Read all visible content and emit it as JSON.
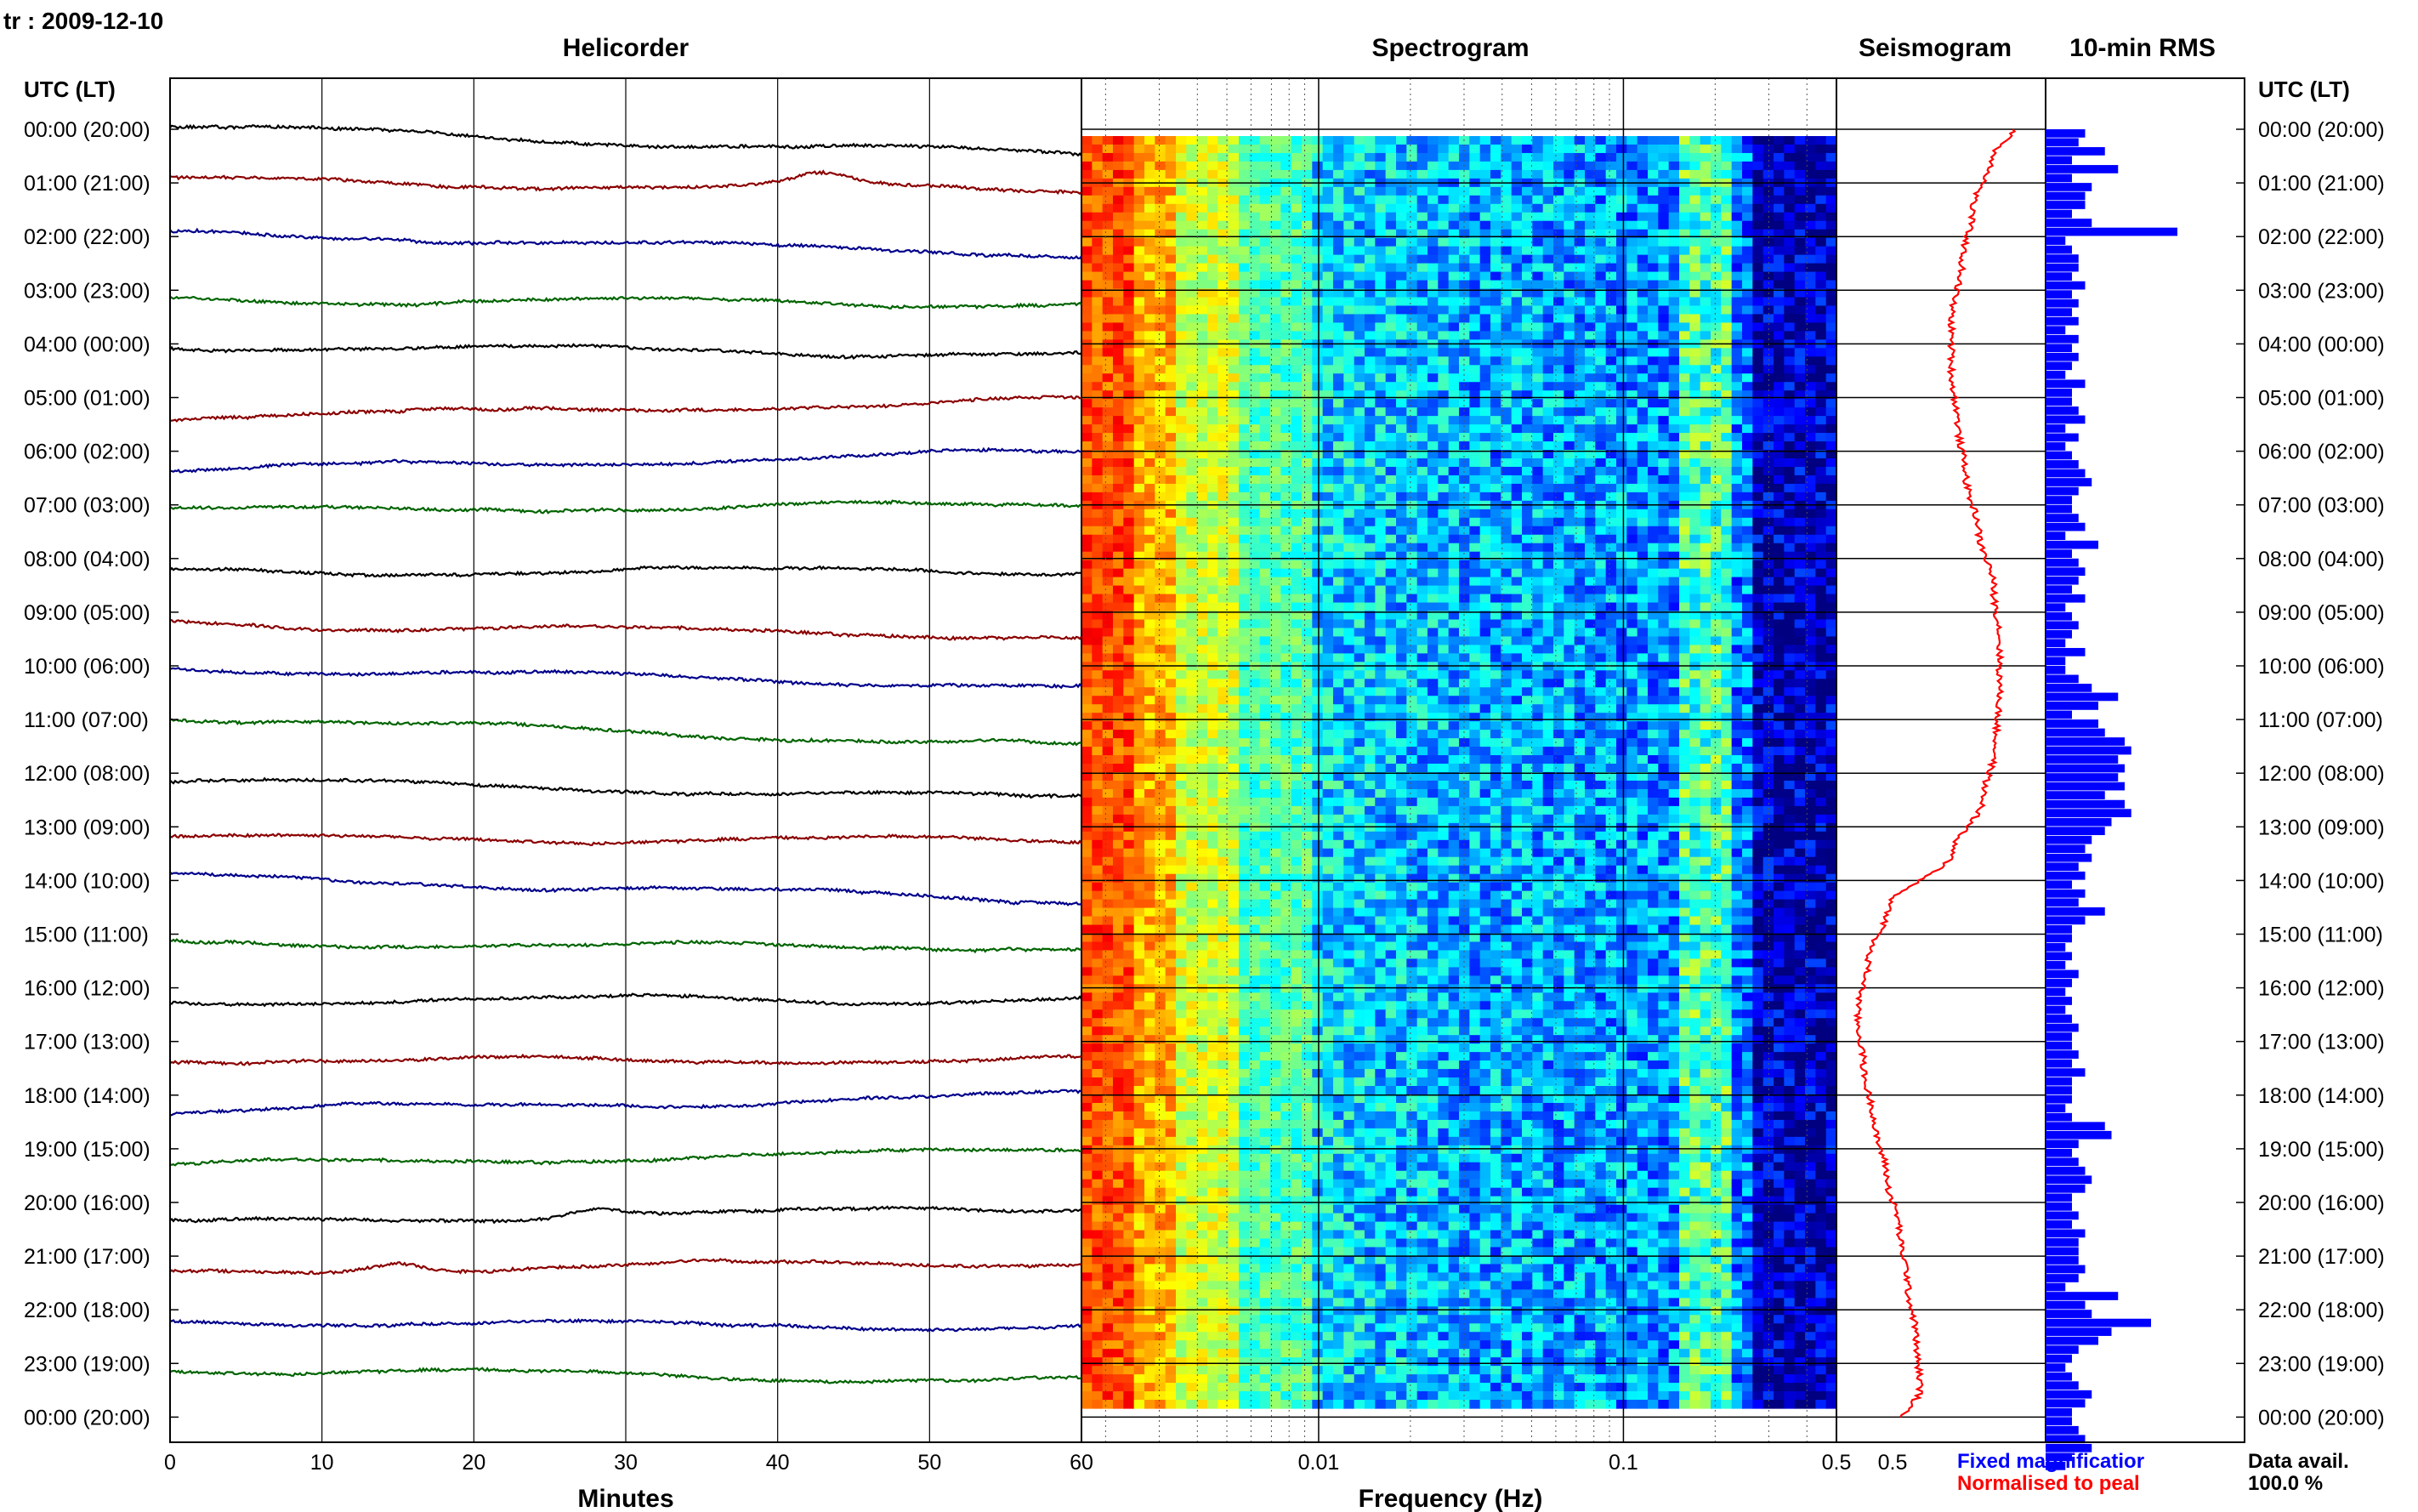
{
  "header": {
    "station_date": "tr : 2009-12-10",
    "utc_lt_label": "UTC (LT)",
    "utc_lt_label_right": "UTC (LT)"
  },
  "panels": {
    "helicorder_title": "Helicorder",
    "spectrogram_title": "Spectrogram",
    "seismogram_title": "Seismogram",
    "rms_title": "10-min RMS"
  },
  "time_labels": [
    "00:00 (20:00)",
    "01:00 (21:00)",
    "02:00 (22:00)",
    "03:00 (23:00)",
    "04:00 (00:00)",
    "05:00 (01:00)",
    "06:00 (02:00)",
    "07:00 (03:00)",
    "08:00 (04:00)",
    "09:00 (05:00)",
    "10:00 (06:00)",
    "11:00 (07:00)",
    "12:00 (08:00)",
    "13:00 (09:00)",
    "14:00 (10:00)",
    "15:00 (11:00)",
    "16:00 (12:00)",
    "17:00 (13:00)",
    "18:00 (14:00)",
    "19:00 (15:00)",
    "20:00 (16:00)",
    "21:00 (17:00)",
    "22:00 (18:00)",
    "23:00 (19:00)",
    "00:00 (20:00)"
  ],
  "footer": {
    "minutes_label": "Minutes",
    "frequency_label": "Frequency (Hz)",
    "minute_ticks": [
      "0",
      "10",
      "20",
      "30",
      "40",
      "50",
      "60"
    ],
    "frequency_ticks": [
      "60",
      "0.01",
      "0.1",
      "0.5",
      "0.5"
    ],
    "legend_fixed": "Fixed magnificatior",
    "legend_normalised": "Normalised to peal",
    "data_avail_label": "Data avail.",
    "data_avail_value": "100.0 %"
  },
  "colors": {
    "trace_cycle": [
      "#000000",
      "#8b0000",
      "#00008b",
      "#006400"
    ],
    "seismogram_line": "#ff0000",
    "rms_bar": "#0000ff",
    "legend_fixed": "#0000ff",
    "legend_normalised": "#ff0000"
  },
  "chart_data": [
    {
      "type": "line",
      "title": "Helicorder",
      "xlabel": "Minutes",
      "xlim": [
        0,
        60
      ],
      "x_ticks": [
        0,
        10,
        20,
        30,
        40,
        50,
        60
      ],
      "rows": 24,
      "row_label_format": "HH:00 UTC (local time)",
      "series_color_cycle": [
        "black",
        "darkred",
        "darkblue",
        "darkgreen"
      ],
      "row_offsets_start": [
        0.45,
        0.45,
        0.45,
        0.1,
        0.3,
        -0.3,
        -0.3,
        0.2,
        -0.1,
        0.0,
        0.35,
        0.45,
        0.15,
        0.0,
        0.5,
        0.1,
        -0.1,
        -0.25,
        -0.2,
        -0.2,
        -0.35,
        -0.25,
        0.0,
        0.2
      ],
      "row_offsets_end": [
        -0.5,
        0.1,
        -0.2,
        -0.1,
        0.0,
        0.3,
        0.3,
        0.4,
        0.0,
        -0.45,
        -0.35,
        -0.6,
        -0.45,
        -0.1,
        -0.3,
        -0.1,
        0.0,
        -0.25,
        0.4,
        0.35,
        0.2,
        0.2,
        -0.2,
        -0.25
      ],
      "wiggle_bumps": [
        {
          "row": 1,
          "minute": 43,
          "amplitude": 0.35
        },
        {
          "row": 20,
          "minute": 28,
          "amplitude": 0.3
        },
        {
          "row": 21,
          "minute": 15,
          "amplitude": 0.35
        }
      ]
    },
    {
      "type": "heatmap",
      "title": "Spectrogram",
      "xlabel": "Frequency (Hz)",
      "x_scale": "log",
      "x_ticks": [
        0.01,
        0.1,
        0.5
      ],
      "colormap": "jet",
      "description_pattern": "high power (red/orange) at lowest frequencies, yellow-green to light blue mid band, dark blue near 0.3-0.5 Hz"
    },
    {
      "type": "line",
      "title": "Seismogram",
      "y_rows": 25,
      "x_norm": [
        0.85,
        0.75,
        0.65,
        0.6,
        0.55,
        0.55,
        0.58,
        0.62,
        0.68,
        0.75,
        0.78,
        0.78,
        0.76,
        0.7,
        0.55,
        0.25,
        0.15,
        0.1,
        0.13,
        0.18,
        0.24,
        0.3,
        0.34,
        0.38,
        0.4,
        0.32
      ],
      "row_positions": [
        0.0,
        0.5,
        1.5,
        2.5,
        3.5,
        4.5,
        5.5,
        6.5,
        7.5,
        8.5,
        9.5,
        10.5,
        11.5,
        12.5,
        13.5,
        14.5,
        15.5,
        16.5,
        17.5,
        18.5,
        19.5,
        20.5,
        21.5,
        22.5,
        23.5,
        24.0
      ]
    },
    {
      "type": "bar",
      "title": "10-min RMS",
      "orientation": "horizontal",
      "values_norm": [
        0.3,
        0.25,
        0.45,
        0.2,
        0.55,
        0.2,
        0.35,
        0.3,
        0.3,
        0.2,
        0.35,
        1.0,
        0.15,
        0.2,
        0.25,
        0.25,
        0.2,
        0.3,
        0.2,
        0.25,
        0.2,
        0.25,
        0.15,
        0.25,
        0.2,
        0.25,
        0.2,
        0.15,
        0.3,
        0.2,
        0.2,
        0.25,
        0.3,
        0.15,
        0.25,
        0.15,
        0.2,
        0.25,
        0.3,
        0.35,
        0.25,
        0.2,
        0.2,
        0.25,
        0.3,
        0.15,
        0.4,
        0.2,
        0.25,
        0.3,
        0.25,
        0.2,
        0.3,
        0.15,
        0.2,
        0.25,
        0.2,
        0.15,
        0.3,
        0.15,
        0.15,
        0.25,
        0.35,
        0.55,
        0.4,
        0.2,
        0.4,
        0.45,
        0.6,
        0.65,
        0.55,
        0.6,
        0.55,
        0.6,
        0.45,
        0.6,
        0.65,
        0.5,
        0.45,
        0.35,
        0.3,
        0.35,
        0.25,
        0.3,
        0.2,
        0.3,
        0.25,
        0.45,
        0.3,
        0.2,
        0.2,
        0.15,
        0.2,
        0.15,
        0.25,
        0.2,
        0.15,
        0.2,
        0.15,
        0.2,
        0.25,
        0.2,
        0.2,
        0.25,
        0.2,
        0.3,
        0.2,
        0.2,
        0.2,
        0.15,
        0.2,
        0.45,
        0.5,
        0.25,
        0.2,
        0.25,
        0.3,
        0.35,
        0.3,
        0.2,
        0.2,
        0.25,
        0.2,
        0.3,
        0.25,
        0.25,
        0.25,
        0.3,
        0.25,
        0.15,
        0.55,
        0.3,
        0.35,
        0.8,
        0.5,
        0.4,
        0.25,
        0.2,
        0.15,
        0.2,
        0.25,
        0.35,
        0.3,
        0.2,
        0.2,
        0.25,
        0.3,
        0.35,
        0.2,
        0.15
      ]
    }
  ]
}
